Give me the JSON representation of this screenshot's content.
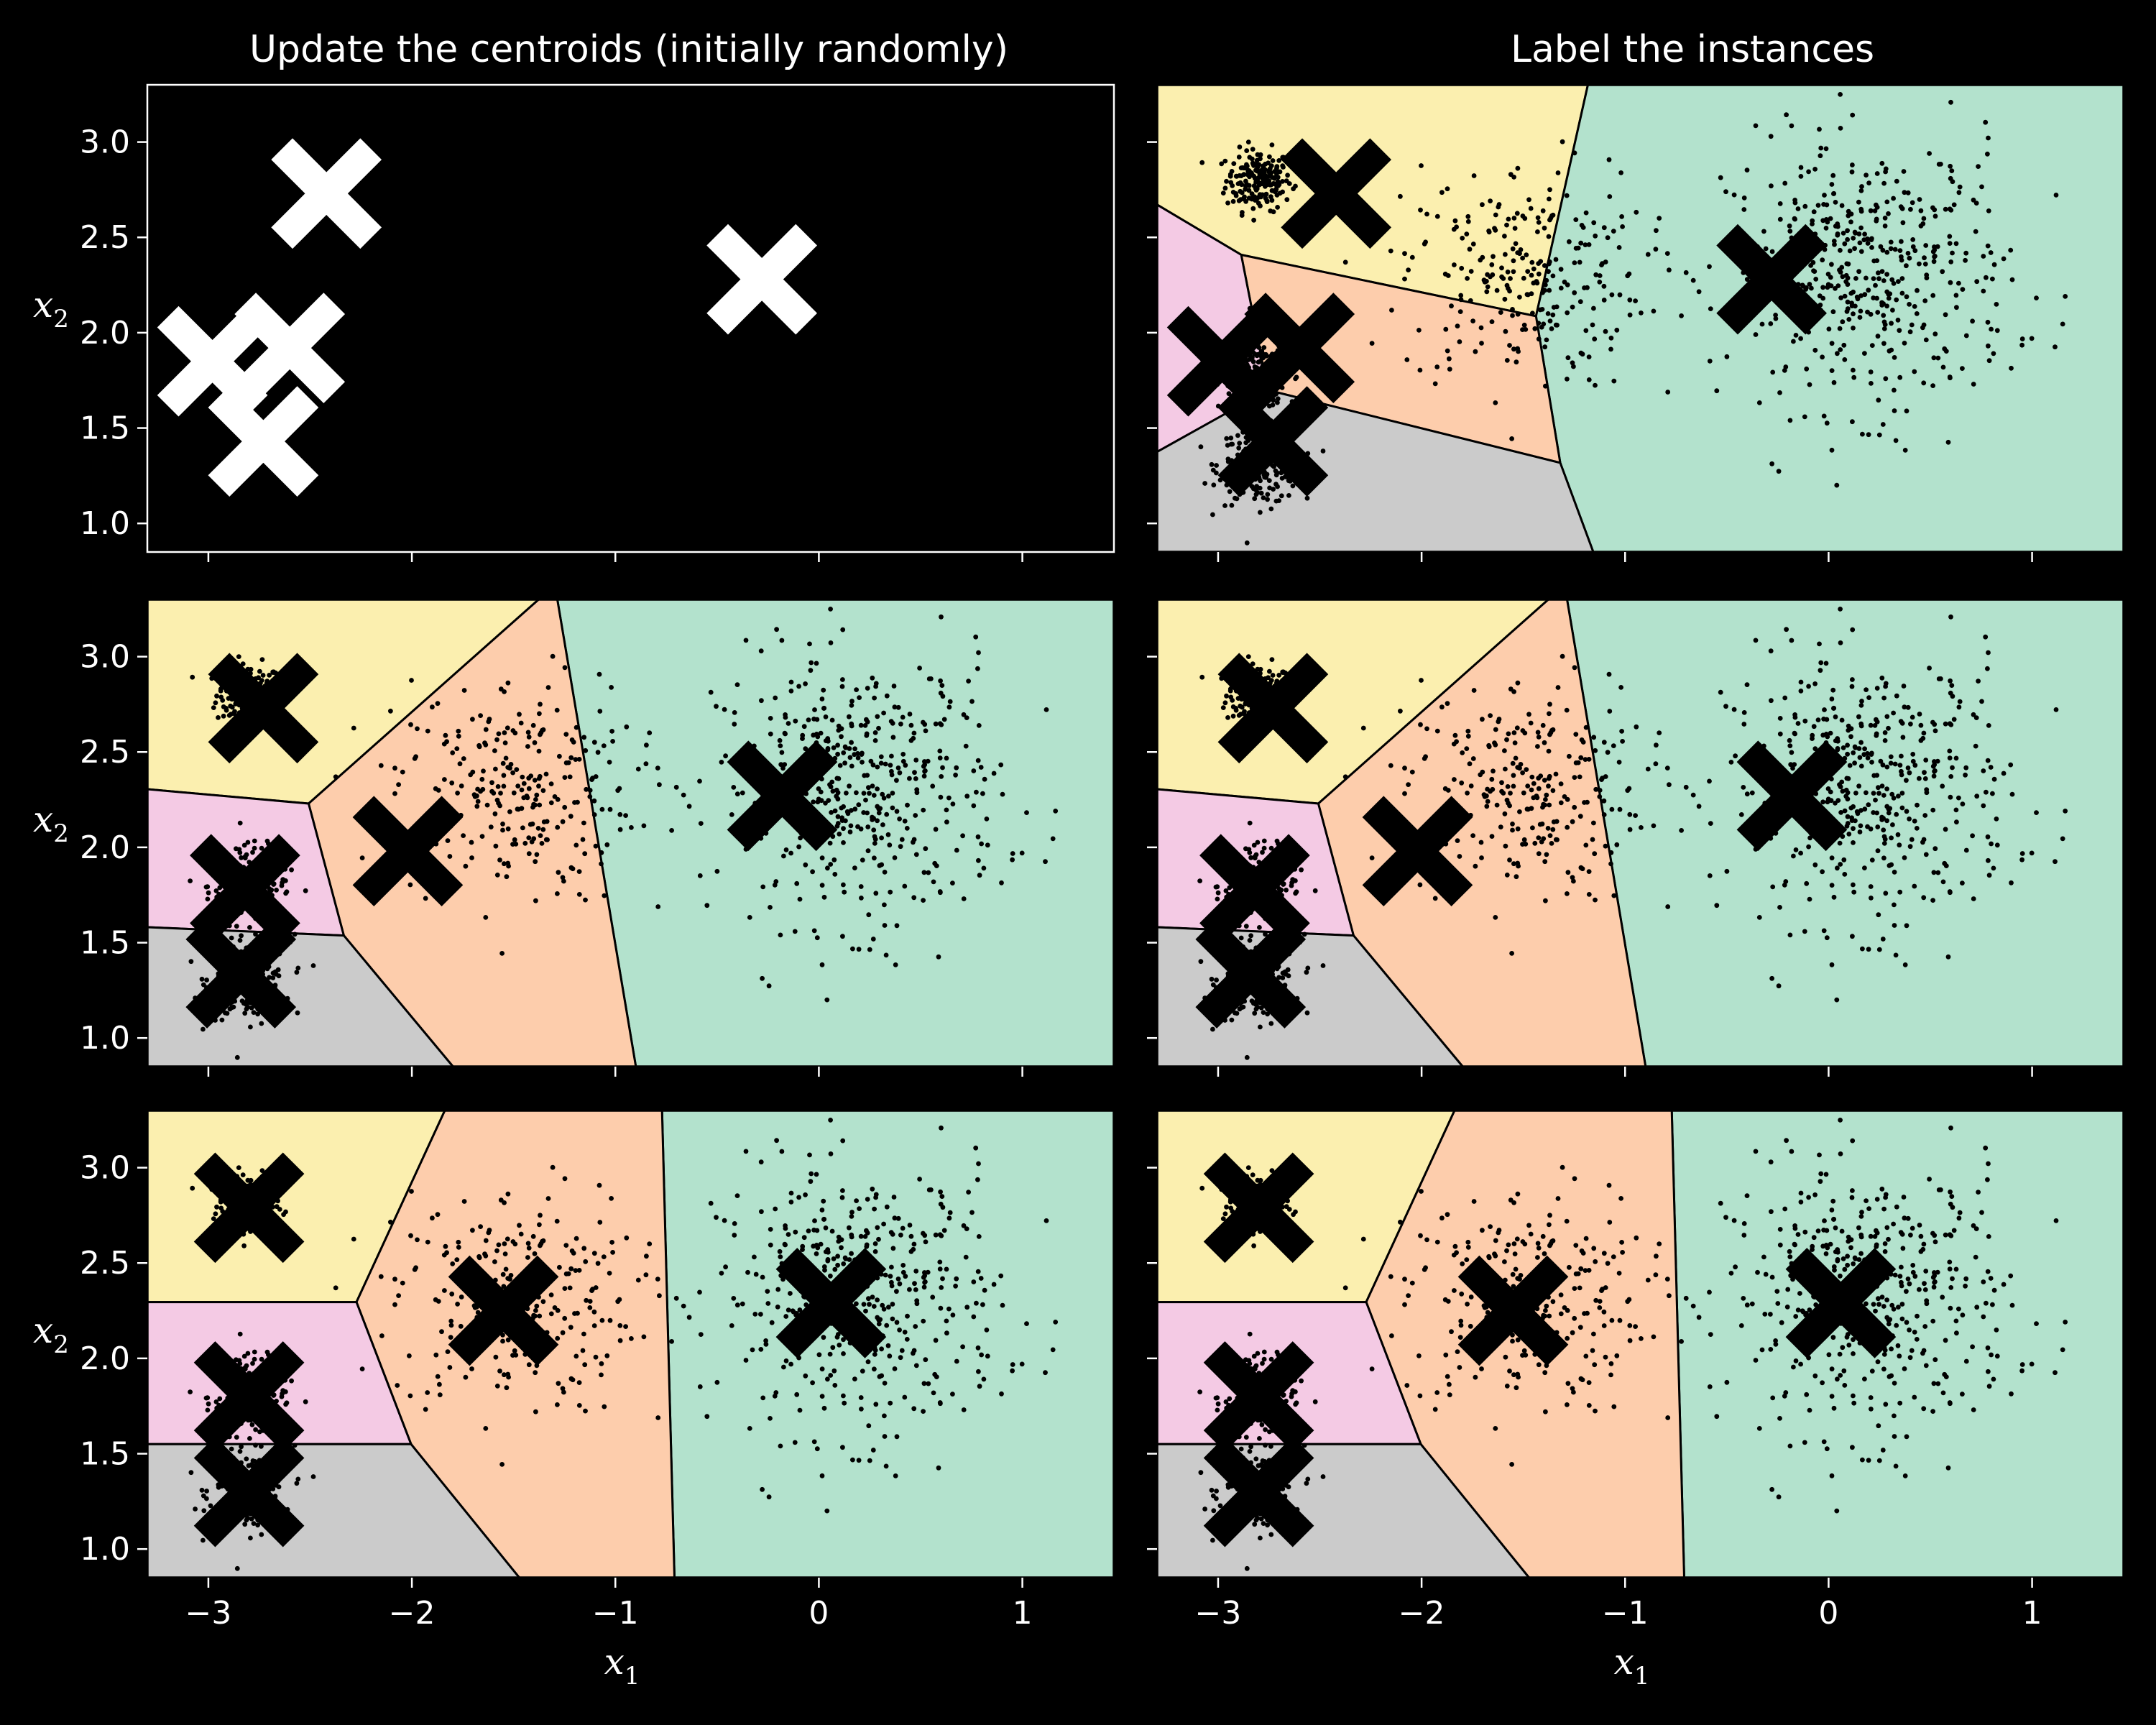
{
  "chart_data": {
    "type": "scatter",
    "layout": "3x2 grid of panels",
    "column_titles": [
      "Update the centroids (initially randomly)",
      "Label the instances"
    ],
    "xlabel": "x",
    "xlabel_sub": "1",
    "ylabel": "x",
    "ylabel_sub": "2",
    "xlim": [
      -3.3,
      1.45
    ],
    "ylim": [
      0.85,
      3.3
    ],
    "xticks": [
      -3,
      -2,
      -1,
      0,
      1
    ],
    "xtick_labels": [
      "−3",
      "−2",
      "−1",
      "0",
      "1"
    ],
    "yticks": [
      1.0,
      1.5,
      2.0,
      2.5,
      3.0
    ],
    "ytick_labels": [
      "1.0",
      "1.5",
      "2.0",
      "2.5",
      "3.0"
    ],
    "grid": false,
    "region_colors": [
      "#fbefaf",
      "#b3e2cd",
      "#fdcdac",
      "#f4cae4",
      "#cbcbcb"
    ],
    "background_color": "#000000",
    "point_color": "#000000",
    "marker_color_first": "#ffffff",
    "marker_color_others": "#000000",
    "blobs": [
      {
        "center": [
          -2.8,
          2.8
        ],
        "std": 0.08,
        "count": 200
      },
      {
        "center": [
          -2.8,
          1.8
        ],
        "std": 0.1,
        "count": 200
      },
      {
        "center": [
          -2.8,
          1.3
        ],
        "std": 0.1,
        "count": 200
      },
      {
        "center": [
          -1.5,
          2.3
        ],
        "std": 0.3,
        "count": 260
      },
      {
        "center": [
          0.2,
          2.3
        ],
        "std": 0.35,
        "count": 450
      }
    ],
    "panels": [
      {
        "row": 0,
        "col": 0,
        "show_points": false,
        "show_regions": false,
        "centroids": [
          [
            -2.42,
            2.73
          ],
          [
            -0.28,
            2.28
          ],
          [
            -2.6,
            1.92
          ],
          [
            -2.98,
            1.85
          ],
          [
            -2.73,
            1.43
          ]
        ]
      },
      {
        "row": 0,
        "col": 1,
        "show_points": true,
        "show_regions": true,
        "centroids": [
          [
            -2.42,
            2.73
          ],
          [
            -0.28,
            2.28
          ],
          [
            -2.6,
            1.92
          ],
          [
            -2.98,
            1.85
          ],
          [
            -2.73,
            1.43
          ]
        ]
      },
      {
        "row": 1,
        "col": 0,
        "show_points": true,
        "show_regions": true,
        "centroids": [
          [
            -2.73,
            2.73
          ],
          [
            -0.18,
            2.27
          ],
          [
            -2.02,
            1.98
          ],
          [
            -2.82,
            1.78
          ],
          [
            -2.84,
            1.34
          ]
        ]
      },
      {
        "row": 1,
        "col": 1,
        "show_points": true,
        "show_regions": true,
        "centroids": [
          [
            -2.73,
            2.73
          ],
          [
            -0.18,
            2.27
          ],
          [
            -2.02,
            1.98
          ],
          [
            -2.82,
            1.78
          ],
          [
            -2.84,
            1.34
          ]
        ]
      },
      {
        "row": 2,
        "col": 0,
        "show_points": true,
        "show_regions": true,
        "centroids": [
          [
            -2.8,
            2.79
          ],
          [
            0.06,
            2.29
          ],
          [
            -1.55,
            2.25
          ],
          [
            -2.8,
            1.8
          ],
          [
            -2.8,
            1.3
          ]
        ]
      },
      {
        "row": 2,
        "col": 1,
        "show_points": true,
        "show_regions": true,
        "centroids": [
          [
            -2.8,
            2.79
          ],
          [
            0.06,
            2.29
          ],
          [
            -1.55,
            2.25
          ],
          [
            -2.8,
            1.8
          ],
          [
            -2.8,
            1.3
          ]
        ]
      }
    ]
  }
}
